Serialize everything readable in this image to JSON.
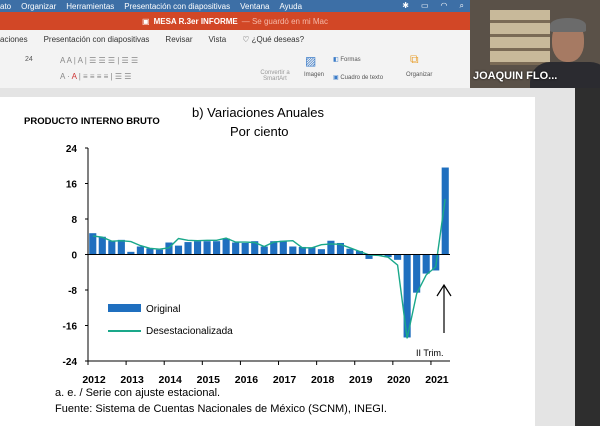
{
  "menubar": {
    "items": [
      "ato",
      "Organizar",
      "Herramientas",
      "Presentación con diapositivas",
      "Ventana",
      "Ayuda"
    ]
  },
  "titlebar": {
    "doc": "MESA R.3er INFORME",
    "status": "— Se guardó en mi Mac"
  },
  "tabs": [
    "aciones",
    "Presentación con diapositivas",
    "Revisar",
    "Vista",
    "¿Qué deseas?"
  ],
  "ribbon": {
    "font_size": "24",
    "convert": "Convertir a SmartArt",
    "image": "Imagen",
    "shapes": "Formas",
    "textbox": "Cuadro de texto",
    "arrange": "Organizar"
  },
  "video": {
    "participant": "JOAQUIN FLO..."
  },
  "slide": {
    "heading": "PRODUCTO INTERNO BRUTO",
    "note": "a. e. / Serie con ajuste estacional.",
    "source": "Fuente: Sistema de Cuentas Nacionales de México (SCNM), INEGI."
  },
  "chart_data": {
    "type": "bar",
    "title": "b) Variaciones Anuales",
    "subtitle": "Por ciento",
    "ylim": [
      -24,
      24
    ],
    "yticks": [
      "24",
      "16",
      "8",
      "0",
      "-8",
      "-16",
      "-24"
    ],
    "ytick_values": [
      24,
      16,
      8,
      0,
      -8,
      -16,
      -24
    ],
    "xticks": [
      "2012",
      "2013",
      "2014",
      "2015",
      "2016",
      "2017",
      "2018",
      "2019",
      "2020",
      "2021"
    ],
    "annotation": "II Trim.",
    "legend": "left-bottom",
    "colors": {
      "Original": "#1f6fbf",
      "Desestacionalizada": "#1aa88a"
    },
    "series": [
      {
        "name": "Original",
        "type": "bar",
        "values": [
          4.8,
          4.0,
          3.1,
          3.3,
          0.6,
          1.8,
          1.4,
          1.1,
          2.7,
          2.0,
          2.8,
          3.0,
          3.0,
          3.0,
          3.6,
          2.7,
          2.6,
          3.0,
          1.8,
          3.0,
          3.1,
          1.8,
          1.7,
          1.6,
          1.2,
          3.1,
          2.6,
          1.3,
          0.8,
          -1.0,
          -0.2,
          -0.6,
          -1.2,
          -18.7,
          -8.6,
          -4.3,
          -3.6,
          19.6
        ]
      },
      {
        "name": "Desestacionalizada",
        "type": "line",
        "values": [
          4.2,
          3.9,
          3.0,
          3.1,
          2.9,
          2.0,
          1.4,
          1.2,
          1.5,
          3.6,
          3.2,
          3.1,
          3.2,
          3.2,
          3.7,
          2.8,
          2.8,
          2.7,
          1.8,
          2.8,
          3.0,
          3.1,
          1.5,
          1.5,
          2.2,
          2.4,
          2.3,
          1.5,
          0.7,
          -0.1,
          -0.2,
          -0.6,
          -2.4,
          -18.9,
          -8.8,
          -4.6,
          -2.8,
          12.5
        ]
      }
    ]
  }
}
